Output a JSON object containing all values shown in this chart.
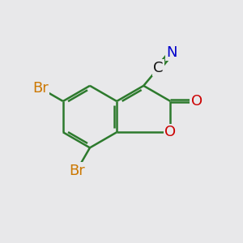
{
  "bg_color": "#e8e8ea",
  "bond_color": "#2d7a2d",
  "bond_width": 1.8,
  "atom_colors": {
    "Br": "#cc7700",
    "O": "#cc0000",
    "N": "#0000cc",
    "C": "#111111"
  },
  "font_size": 13
}
